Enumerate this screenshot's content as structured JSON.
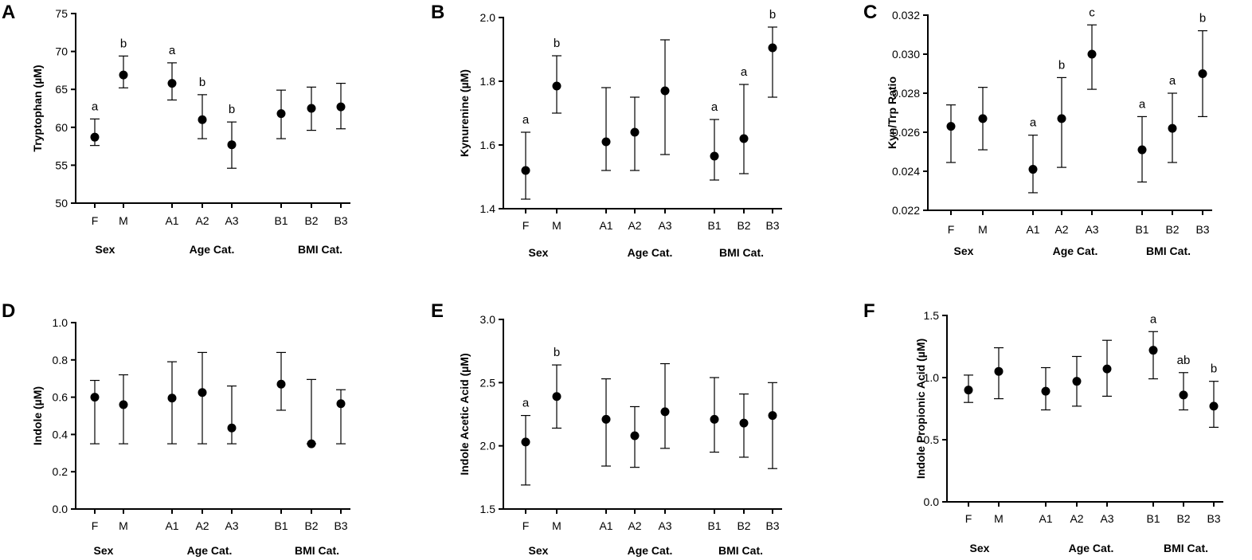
{
  "chart_data": [
    {
      "panel": "A",
      "type": "scatter",
      "ylabel": "Tryptophan (µM)",
      "ylim": [
        50,
        75
      ],
      "yticks": [
        50,
        55,
        60,
        65,
        70,
        75
      ],
      "ytick_labels": [
        "50",
        "55",
        "60",
        "65",
        "70",
        "75"
      ],
      "groups": [
        {
          "label": "Sex",
          "categories": [
            "F",
            "M"
          ]
        },
        {
          "label": "Age Cat.",
          "categories": [
            "A1",
            "A2",
            "A3"
          ]
        },
        {
          "label": "BMI Cat.",
          "categories": [
            "B1",
            "B2",
            "B3"
          ]
        }
      ],
      "categories": [
        "F",
        "M",
        "A1",
        "A2",
        "A3",
        "B1",
        "B2",
        "B3"
      ],
      "values": [
        58.7,
        66.9,
        65.8,
        61.0,
        57.7,
        61.8,
        62.5,
        62.7
      ],
      "error_low": [
        57.6,
        65.2,
        63.6,
        58.5,
        54.6,
        58.5,
        59.6,
        59.8
      ],
      "error_high": [
        61.1,
        69.4,
        68.5,
        64.3,
        60.7,
        64.9,
        65.3,
        65.8
      ],
      "annotations": [
        "a",
        "b",
        "a",
        "b",
        "b",
        "",
        "",
        ""
      ]
    },
    {
      "panel": "B",
      "type": "scatter",
      "ylabel": "Kynurenine (µM)",
      "ylim": [
        1.4,
        2.0
      ],
      "yticks": [
        1.4,
        1.6,
        1.8,
        2.0
      ],
      "ytick_labels": [
        "1.4",
        "1.6",
        "1.8",
        "2.0"
      ],
      "groups": [
        {
          "label": "Sex",
          "categories": [
            "F",
            "M"
          ]
        },
        {
          "label": "Age Cat.",
          "categories": [
            "A1",
            "A2",
            "A3"
          ]
        },
        {
          "label": "BMI Cat.",
          "categories": [
            "B1",
            "B2",
            "B3"
          ]
        }
      ],
      "categories": [
        "F",
        "M",
        "A1",
        "A2",
        "A3",
        "B1",
        "B2",
        "B3"
      ],
      "values": [
        1.52,
        1.785,
        1.61,
        1.64,
        1.77,
        1.565,
        1.62,
        1.905
      ],
      "error_low": [
        1.43,
        1.7,
        1.52,
        1.52,
        1.57,
        1.49,
        1.51,
        1.75
      ],
      "error_high": [
        1.64,
        1.88,
        1.78,
        1.75,
        1.93,
        1.68,
        1.79,
        1.97
      ],
      "annotations": [
        "a",
        "b",
        "",
        "",
        "",
        "a",
        "a",
        "b"
      ]
    },
    {
      "panel": "C",
      "type": "scatter",
      "ylabel": "Kyn/Trp Ratio",
      "ylim": [
        0.022,
        0.032
      ],
      "yticks": [
        0.022,
        0.024,
        0.026,
        0.028,
        0.03,
        0.032
      ],
      "ytick_labels": [
        "0.022",
        "0.024",
        "0.026",
        "0.028",
        "0.030",
        "0.032"
      ],
      "groups": [
        {
          "label": "Sex",
          "categories": [
            "F",
            "M"
          ]
        },
        {
          "label": "Age Cat.",
          "categories": [
            "A1",
            "A2",
            "A3"
          ]
        },
        {
          "label": "BMI Cat.",
          "categories": [
            "B1",
            "B2",
            "B3"
          ]
        }
      ],
      "categories": [
        "F",
        "M",
        "A1",
        "A2",
        "A3",
        "B1",
        "B2",
        "B3"
      ],
      "values": [
        0.0263,
        0.0267,
        0.0241,
        0.0267,
        0.03,
        0.0251,
        0.0262,
        0.029
      ],
      "error_low": [
        0.02445,
        0.0251,
        0.0229,
        0.0242,
        0.0282,
        0.02345,
        0.02445,
        0.0268
      ],
      "error_high": [
        0.0274,
        0.0283,
        0.02585,
        0.0288,
        0.0315,
        0.0268,
        0.028,
        0.0312
      ],
      "annotations": [
        "",
        "",
        "a",
        "b",
        "c",
        "a",
        "a",
        "b"
      ]
    },
    {
      "panel": "D",
      "type": "scatter",
      "ylabel": "Indole (µM)",
      "ylim": [
        0.0,
        1.0
      ],
      "yticks": [
        0.0,
        0.2,
        0.4,
        0.6,
        0.8,
        1.0
      ],
      "ytick_labels": [
        "0.0",
        "0.2",
        "0.4",
        "0.6",
        "0.8",
        "1.0"
      ],
      "groups": [
        {
          "label": "Sex",
          "categories": [
            "F",
            "M"
          ]
        },
        {
          "label": "Age Cat.",
          "categories": [
            "A1",
            "A2",
            "A3"
          ]
        },
        {
          "label": "BMI Cat.",
          "categories": [
            "B1",
            "B2",
            "B3"
          ]
        }
      ],
      "categories": [
        "F",
        "M",
        "A1",
        "A2",
        "A3",
        "B1",
        "B2",
        "B3"
      ],
      "values": [
        0.6,
        0.56,
        0.595,
        0.625,
        0.435,
        0.67,
        0.35,
        0.565
      ],
      "error_low": [
        0.35,
        0.35,
        0.35,
        0.35,
        0.35,
        0.53,
        0.35,
        0.35
      ],
      "error_high": [
        0.69,
        0.72,
        0.79,
        0.84,
        0.66,
        0.84,
        0.695,
        0.64
      ],
      "annotations": [
        "",
        "",
        "",
        "",
        "",
        "",
        "",
        ""
      ]
    },
    {
      "panel": "E",
      "type": "scatter",
      "ylabel": "Indole Acetic Acid (µM)",
      "ylim": [
        1.5,
        3.0
      ],
      "yticks": [
        1.5,
        2.0,
        2.5,
        3.0
      ],
      "ytick_labels": [
        "1.5",
        "2.0",
        "2.5",
        "3.0"
      ],
      "groups": [
        {
          "label": "Sex",
          "categories": [
            "F",
            "M"
          ]
        },
        {
          "label": "Age Cat.",
          "categories": [
            "A1",
            "A2",
            "A3"
          ]
        },
        {
          "label": "BMI Cat.",
          "categories": [
            "B1",
            "B2",
            "B3"
          ]
        }
      ],
      "categories": [
        "F",
        "M",
        "A1",
        "A2",
        "A3",
        "B1",
        "B2",
        "B3"
      ],
      "values": [
        2.03,
        2.39,
        2.21,
        2.08,
        2.27,
        2.21,
        2.18,
        2.24
      ],
      "error_low": [
        1.69,
        2.14,
        1.84,
        1.83,
        1.98,
        1.95,
        1.91,
        1.82
      ],
      "error_high": [
        2.24,
        2.64,
        2.53,
        2.31,
        2.65,
        2.54,
        2.41,
        2.5
      ],
      "annotations": [
        "a",
        "b",
        "",
        "",
        "",
        "",
        "",
        ""
      ]
    },
    {
      "panel": "F",
      "type": "scatter",
      "ylabel": "Indole Propionic Acid (µM)",
      "ylim": [
        0.0,
        1.5
      ],
      "yticks": [
        0.0,
        0.5,
        1.0,
        1.5
      ],
      "ytick_labels": [
        "0.0",
        "0.5",
        "1.0",
        "1.5"
      ],
      "groups": [
        {
          "label": "Sex",
          "categories": [
            "F",
            "M"
          ]
        },
        {
          "label": "Age Cat.",
          "categories": [
            "A1",
            "A2",
            "A3"
          ]
        },
        {
          "label": "BMI Cat.",
          "categories": [
            "B1",
            "B2",
            "B3"
          ]
        }
      ],
      "categories": [
        "F",
        "M",
        "A1",
        "A2",
        "A3",
        "B1",
        "B2",
        "B3"
      ],
      "values": [
        0.9,
        1.05,
        0.89,
        0.97,
        1.07,
        1.22,
        0.86,
        0.77
      ],
      "error_low": [
        0.8,
        0.83,
        0.74,
        0.77,
        0.85,
        0.99,
        0.74,
        0.6
      ],
      "error_high": [
        1.02,
        1.24,
        1.08,
        1.17,
        1.3,
        1.37,
        1.04,
        0.97
      ],
      "annotations": [
        "",
        "",
        "",
        "",
        "",
        "a",
        "ab",
        "b"
      ]
    }
  ]
}
